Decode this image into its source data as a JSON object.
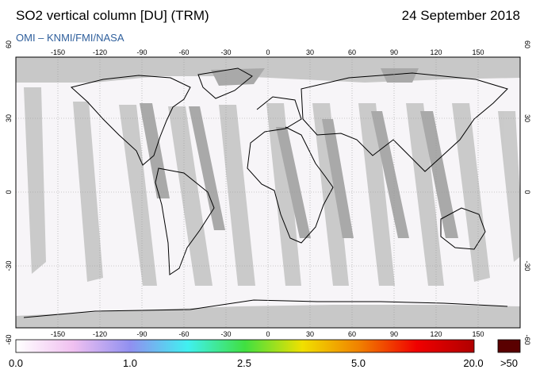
{
  "header": {
    "title": "SO2 vertical column [DU] (TRM)",
    "date": "24 September 2018",
    "credit": "OMI  –  KNMI/FMI/NASA"
  },
  "map": {
    "lon_ticks": [
      "-150",
      "-120",
      "-90",
      "-60",
      "-30",
      "0",
      "30",
      "60",
      "90",
      "120",
      "150"
    ],
    "lat_ticks": [
      "60",
      "30",
      "0",
      "-30",
      "-60"
    ],
    "colors": {
      "no_data": "#c8c8c8",
      "overlap": "#a9a9a9",
      "background": "#f7f5f8",
      "coast": "#000000"
    }
  },
  "colorbar": {
    "labels": [
      "0.0",
      "1.0",
      "2.5",
      "5.0",
      "20.0",
      ">50"
    ],
    "colors": [
      "#ffffff",
      "#f0c0f0",
      "#9090f0",
      "#40f0f0",
      "#40e040",
      "#f0e000",
      "#f08000",
      "#f00000",
      "#b00000"
    ],
    "overflow_color": "#5a0000"
  }
}
